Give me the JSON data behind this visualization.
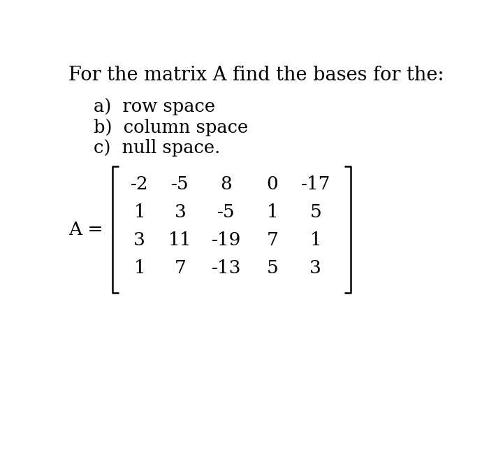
{
  "title": "For the matrix A find the bases for the:",
  "items": [
    "a)  row space",
    "b)  column space",
    "c)  null space."
  ],
  "matrix_label": "A =",
  "matrix": [
    [
      "-2",
      "-5",
      "8",
      "0",
      "-17"
    ],
    [
      "1",
      "3",
      "-5",
      "1",
      "5"
    ],
    [
      "3",
      "11",
      "-19",
      "7",
      "1"
    ],
    [
      "1",
      "7",
      "-13",
      "5",
      "3"
    ]
  ],
  "bg_color": "#ffffff",
  "text_color": "#000000",
  "title_fontsize": 19.5,
  "item_fontsize": 18.5,
  "matrix_fontsize": 19,
  "label_fontsize": 19
}
